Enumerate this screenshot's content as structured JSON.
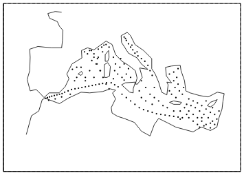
{
  "chart_data": {
    "type": "map",
    "xlim": [
      -15,
      40
    ],
    "xticks": [
      -10,
      -5,
      0,
      5,
      10,
      15,
      20,
      25,
      30,
      35
    ],
    "ylim": [
      25,
      50
    ],
    "yticks": [
      30,
      35,
      40,
      45
    ],
    "grid": true,
    "tick_labels": false,
    "series": [
      {
        "type": "line",
        "color": "#000000",
        "points": [
          [
            -1.5,
            48.7
          ],
          [
            -3,
            48.8
          ],
          [
            -4.7,
            48.5
          ],
          [
            -4.3,
            47.8
          ],
          [
            -2.5,
            47.3
          ],
          [
            -2,
            46.6
          ],
          [
            -1.2,
            46
          ],
          [
            -1.3,
            44.5
          ],
          [
            -1.5,
            43.4
          ],
          [
            -3.8,
            43.4
          ],
          [
            -7,
            43.6
          ],
          [
            -8.9,
            43.2
          ],
          [
            -8.8,
            42
          ],
          [
            -8.9,
            40
          ],
          [
            -9.5,
            38.7
          ],
          [
            -8.8,
            37
          ],
          [
            -7.4,
            37.2
          ],
          [
            -6.3,
            36.5
          ],
          [
            -5.6,
            36
          ],
          [
            -4.4,
            36.7
          ],
          [
            -2.1,
            36.7
          ],
          [
            -0.7,
            37.6
          ],
          [
            0.2,
            38.8
          ],
          [
            -0.3,
            39.5
          ],
          [
            0.9,
            41
          ],
          [
            3.2,
            41.9
          ],
          [
            3.1,
            43
          ],
          [
            4.5,
            43.4
          ],
          [
            6,
            43.1
          ],
          [
            7.5,
            43.8
          ],
          [
            8.8,
            44.4
          ],
          [
            10.2,
            43.9
          ],
          [
            11,
            42.4
          ],
          [
            12.5,
            41.4
          ],
          [
            14,
            40.8
          ],
          [
            15.6,
            40
          ],
          [
            16,
            38.9
          ],
          [
            15.6,
            38
          ],
          [
            16.1,
            38
          ],
          [
            17.2,
            39
          ],
          [
            16.6,
            40.4
          ],
          [
            18.5,
            40.2
          ],
          [
            17,
            41
          ],
          [
            16,
            41.9
          ],
          [
            14,
            42.6
          ],
          [
            12.4,
            44.2
          ],
          [
            12.3,
            45.2
          ],
          [
            13.7,
            45.7
          ],
          [
            14.5,
            45.2
          ],
          [
            15.5,
            43.9
          ],
          [
            17.5,
            43
          ],
          [
            19.4,
            41.8
          ],
          [
            19.4,
            40.3
          ],
          [
            20.2,
            39.5
          ],
          [
            21,
            38.3
          ],
          [
            21.7,
            36.8
          ],
          [
            22.9,
            36.4
          ],
          [
            23.2,
            37.9
          ],
          [
            22.9,
            38.3
          ],
          [
            24,
            38.2
          ],
          [
            22.8,
            39.2
          ],
          [
            22.6,
            40.5
          ],
          [
            24,
            40.7
          ],
          [
            26,
            40.8
          ],
          [
            26.2,
            40
          ],
          [
            27,
            38.5
          ],
          [
            27.3,
            37
          ],
          [
            28.3,
            36.7
          ],
          [
            30.5,
            36.3
          ],
          [
            32.5,
            36.1
          ],
          [
            34.6,
            36.8
          ],
          [
            36.2,
            36.6
          ],
          [
            35.9,
            35.4
          ],
          [
            35.7,
            34.3
          ],
          [
            35,
            33
          ],
          [
            34.5,
            31.6
          ],
          [
            33,
            31.1
          ],
          [
            32.2,
            31.3
          ],
          [
            31,
            31.6
          ],
          [
            30,
            31.3
          ],
          [
            29,
            30.9
          ],
          [
            25,
            31.6
          ],
          [
            23.2,
            32.2
          ],
          [
            21,
            32.9
          ],
          [
            20,
            32
          ],
          [
            19,
            30.3
          ],
          [
            17,
            31
          ],
          [
            15.4,
            32.3
          ],
          [
            13,
            32.9
          ],
          [
            11.5,
            33.2
          ],
          [
            10.2,
            33.7
          ],
          [
            10,
            34.5
          ],
          [
            11,
            35.8
          ],
          [
            10.3,
            36.7
          ],
          [
            11,
            37.1
          ],
          [
            9.8,
            37.3
          ],
          [
            8,
            36.9
          ],
          [
            5,
            36.7
          ],
          [
            3,
            36.8
          ],
          [
            0,
            35.9
          ],
          [
            -2,
            35.1
          ],
          [
            -5.3,
            35.9
          ],
          [
            -6,
            35.7
          ],
          [
            -6.8,
            34
          ],
          [
            -8.5,
            33.3
          ],
          [
            -9.7,
            30.5
          ]
        ]
      },
      {
        "type": "line",
        "color": "#000000",
        "points": [
          [
            12.4,
            37.9
          ],
          [
            13.3,
            38.2
          ],
          [
            15.6,
            38.3
          ],
          [
            15.1,
            37.3
          ],
          [
            15.1,
            36.7
          ],
          [
            14.3,
            36.8
          ],
          [
            12.4,
            37.9
          ]
        ]
      },
      {
        "type": "line",
        "color": "#000000",
        "points": [
          [
            8.4,
            39
          ],
          [
            8.4,
            40.9
          ],
          [
            9.2,
            41.2
          ],
          [
            9.8,
            40.6
          ],
          [
            9.6,
            39.2
          ],
          [
            9,
            39
          ],
          [
            8.4,
            39
          ]
        ]
      },
      {
        "type": "line",
        "color": "#000000",
        "points": [
          [
            8.6,
            41.4
          ],
          [
            8.6,
            42.4
          ],
          [
            9.4,
            43
          ],
          [
            9.5,
            42
          ],
          [
            9.2,
            41.4
          ],
          [
            8.6,
            41.4
          ]
        ]
      },
      {
        "type": "line",
        "color": "#000000",
        "points": [
          [
            23.5,
            35.3
          ],
          [
            24.5,
            35.5
          ],
          [
            26.3,
            35.3
          ],
          [
            26,
            35
          ],
          [
            24.5,
            35
          ],
          [
            23.5,
            35.3
          ]
        ]
      },
      {
        "type": "line",
        "color": "#000000",
        "points": [
          [
            32.3,
            34.8
          ],
          [
            33,
            35.3
          ],
          [
            34.6,
            35.7
          ],
          [
            33.9,
            35
          ],
          [
            33,
            34.6
          ],
          [
            32.3,
            34.8
          ]
        ]
      },
      {
        "type": "line",
        "color": "#000000",
        "points": [
          [
            2.3,
            39.5
          ],
          [
            3.1,
            39.9
          ],
          [
            3.4,
            39.6
          ],
          [
            3,
            39.3
          ],
          [
            2.3,
            39.5
          ]
        ]
      },
      {
        "type": "scatter",
        "marker": "dot",
        "color": "#000000",
        "points": [
          [
            -5.2,
            35.9
          ],
          [
            -4.8,
            36.0
          ],
          [
            -4.3,
            36.1
          ],
          [
            -3.8,
            36.2
          ],
          [
            -3.2,
            36.3
          ],
          [
            -2.6,
            36.4
          ],
          [
            -2,
            36.5
          ],
          [
            -1.4,
            36.6
          ],
          [
            -0.8,
            36.8
          ],
          [
            0,
            37
          ],
          [
            0.8,
            37.2
          ],
          [
            1.6,
            37.3
          ],
          [
            2.4,
            37.4
          ],
          [
            3.2,
            37.5
          ],
          [
            4,
            37.6
          ],
          [
            4.8,
            37.7
          ],
          [
            5.6,
            37.8
          ],
          [
            6.4,
            37.9
          ],
          [
            7.2,
            38
          ],
          [
            8,
            38.1
          ],
          [
            8.9,
            38.2
          ],
          [
            10,
            38.2
          ],
          [
            10.8,
            37.9
          ],
          [
            11.6,
            37.6
          ],
          [
            -4.5,
            35.6
          ],
          [
            -3,
            35.8
          ],
          [
            -1.5,
            36.1
          ],
          [
            0.5,
            36.5
          ],
          [
            1.5,
            38.5
          ],
          [
            2,
            39
          ],
          [
            4,
            39
          ],
          [
            5,
            40
          ],
          [
            5.5,
            41.5
          ],
          [
            4.5,
            42.5
          ],
          [
            3.8,
            42.8
          ],
          [
            5,
            43
          ],
          [
            6,
            42.5
          ],
          [
            7,
            43.2
          ],
          [
            7.8,
            43.5
          ],
          [
            8.3,
            43.8
          ],
          [
            8.8,
            43.9
          ],
          [
            9.5,
            43.5
          ],
          [
            6.5,
            41
          ],
          [
            7.5,
            40
          ],
          [
            6,
            39
          ],
          [
            4,
            38.5
          ],
          [
            3,
            40.5
          ],
          [
            2,
            40.5
          ],
          [
            1,
            40.2
          ],
          [
            7,
            42
          ],
          [
            8,
            42.8
          ],
          [
            6.8,
            41.8
          ],
          [
            5.4,
            43
          ],
          [
            6,
            42
          ],
          [
            6.7,
            41
          ],
          [
            7.4,
            40
          ],
          [
            8.1,
            39
          ],
          [
            8.8,
            38
          ],
          [
            9.5,
            37.3
          ],
          [
            10.5,
            42
          ],
          [
            11,
            41
          ],
          [
            12,
            40.5
          ],
          [
            11.5,
            39.5
          ],
          [
            12.5,
            39
          ],
          [
            13.5,
            39.5
          ],
          [
            14,
            40.3
          ],
          [
            13,
            41
          ],
          [
            12.2,
            41.8
          ],
          [
            10.8,
            40
          ],
          [
            13,
            38.6
          ],
          [
            14.5,
            39
          ],
          [
            10.5,
            38.8
          ],
          [
            12.5,
            36.5
          ],
          [
            13.5,
            36
          ],
          [
            14.5,
            35.5
          ],
          [
            15.5,
            35
          ],
          [
            16.5,
            34.5
          ],
          [
            17.5,
            34.2
          ],
          [
            18.5,
            34
          ],
          [
            19.5,
            33.8
          ],
          [
            20.5,
            33.6
          ],
          [
            21.5,
            33.5
          ],
          [
            22.5,
            33.4
          ],
          [
            23.5,
            33.3
          ],
          [
            24.5,
            33.2
          ],
          [
            25.5,
            33.1
          ],
          [
            26.5,
            33
          ],
          [
            13,
            45
          ],
          [
            13.5,
            44.5
          ],
          [
            14,
            44
          ],
          [
            14.5,
            43.5
          ],
          [
            15,
            43.1
          ],
          [
            15.5,
            42.6
          ],
          [
            16.2,
            42.2
          ],
          [
            17,
            41.8
          ],
          [
            17.8,
            41.4
          ],
          [
            18.5,
            40.8
          ],
          [
            19,
            40
          ],
          [
            19.5,
            39.3
          ],
          [
            13.3,
            44.8
          ],
          [
            14.8,
            43.8
          ],
          [
            16,
            42.8
          ],
          [
            17,
            38.5
          ],
          [
            18,
            37.5
          ],
          [
            19,
            36.5
          ],
          [
            20,
            36
          ],
          [
            17,
            36
          ],
          [
            18,
            35.5
          ],
          [
            20,
            37.5
          ],
          [
            21,
            35.5
          ],
          [
            19.5,
            35
          ],
          [
            16.5,
            37
          ],
          [
            23.5,
            39.5
          ],
          [
            24.5,
            39.8
          ],
          [
            25.2,
            39
          ],
          [
            24.5,
            38.5
          ],
          [
            25.5,
            38
          ],
          [
            24.8,
            37.5
          ],
          [
            25.8,
            37
          ],
          [
            26.5,
            36.5
          ],
          [
            24,
            36.5
          ],
          [
            23.5,
            37
          ],
          [
            25,
            36
          ],
          [
            26.8,
            37.5
          ],
          [
            25.5,
            40.3
          ],
          [
            27,
            34.5
          ],
          [
            28,
            34
          ],
          [
            29,
            33.5
          ],
          [
            30,
            33
          ],
          [
            31,
            32.5
          ],
          [
            32,
            32
          ],
          [
            28,
            35.8
          ],
          [
            29,
            35.5
          ],
          [
            30,
            35.2
          ],
          [
            31,
            34.8
          ],
          [
            32,
            34.3
          ],
          [
            33,
            33.8
          ],
          [
            34,
            33.5
          ],
          [
            34.5,
            32.8
          ],
          [
            33.5,
            32.5
          ],
          [
            32.5,
            33
          ],
          [
            31.5,
            33.5
          ],
          [
            30.5,
            34
          ],
          [
            29.5,
            34.5
          ],
          [
            28.5,
            34.8
          ],
          [
            27.5,
            35
          ],
          [
            30,
            32
          ],
          [
            31.5,
            31.8
          ],
          [
            33,
            32.2
          ],
          [
            34,
            32
          ],
          [
            29,
            32.5
          ],
          [
            27.5,
            33.5
          ],
          [
            26,
            34
          ],
          [
            32,
            35.5
          ],
          [
            33.5,
            34.5
          ],
          [
            35,
            34
          ],
          [
            31,
            33
          ],
          [
            28,
            33
          ],
          [
            26,
            32.8
          ],
          [
            24.5,
            34
          ],
          [
            23,
            34.5
          ],
          [
            22,
            34.8
          ],
          [
            30.5,
            31.6
          ],
          [
            33,
            31.5
          ]
        ]
      }
    ]
  }
}
